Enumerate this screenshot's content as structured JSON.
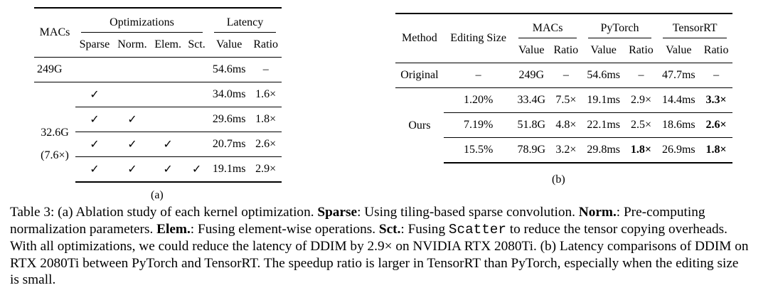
{
  "table_a": {
    "header": {
      "macs": "MACs",
      "optimizations": "Optimizations",
      "latency": "Latency",
      "sparse": "Sparse",
      "norm": "Norm.",
      "elem": "Elem.",
      "sct": "Sct.",
      "value": "Value",
      "ratio": "Ratio"
    },
    "rows": [
      {
        "macs": "249G",
        "value": "54.6ms",
        "ratio": "–"
      },
      {
        "sparse": "✓",
        "value": "34.0ms",
        "ratio": "1.6×"
      },
      {
        "sparse": "✓",
        "norm": "✓",
        "value": "29.6ms",
        "ratio": "1.8×"
      },
      {
        "sparse": "✓",
        "norm": "✓",
        "elem": "✓",
        "value": "20.7ms",
        "ratio": "2.6×"
      },
      {
        "sparse": "✓",
        "norm": "✓",
        "elem": "✓",
        "sct": "✓",
        "value": "19.1ms",
        "ratio": "2.9×"
      }
    ],
    "group_macs": "32.6G",
    "group_macs_ratio": "(7.6×)",
    "label": "(a)"
  },
  "table_b": {
    "header": {
      "method": "Method",
      "editing_size": "Editing Size",
      "macs": "MACs",
      "pytorch": "PyTorch",
      "tensorrt": "TensorRT",
      "macs_value": "Value",
      "macs_ratio": "Ratio",
      "pytorch_value": "Value",
      "pytorch_ratio": "Ratio",
      "tensorrt_value": "Value",
      "tensorrt_ratio": "Ratio"
    },
    "rows": [
      {
        "method": "Original",
        "editing_size": "–",
        "macs_value": "249G",
        "macs_ratio": "–",
        "pytorch_value": "54.6ms",
        "pytorch_ratio": "–",
        "tensorrt_value": "47.7ms",
        "tensorrt_ratio": "–"
      },
      {
        "editing_size": "1.20%",
        "macs_value": "33.4G",
        "macs_ratio": "7.5×",
        "pytorch_value": "19.1ms",
        "pytorch_ratio": "2.9×",
        "tensorrt_value": "14.4ms",
        "tensorrt_ratio": "3.3×",
        "bold": [
          "tensorrt_ratio"
        ]
      },
      {
        "editing_size": "7.19%",
        "macs_value": "51.8G",
        "macs_ratio": "4.8×",
        "pytorch_value": "22.1ms",
        "pytorch_ratio": "2.5×",
        "tensorrt_value": "18.6ms",
        "tensorrt_ratio": "2.6×",
        "bold": [
          "tensorrt_ratio"
        ]
      },
      {
        "editing_size": "15.5%",
        "macs_value": "78.9G",
        "macs_ratio": "3.2×",
        "pytorch_value": "29.8ms",
        "pytorch_ratio": "1.8×",
        "tensorrt_value": "26.9ms",
        "tensorrt_ratio": "1.8×",
        "bold": [
          "pytorch_ratio",
          "tensorrt_ratio"
        ]
      }
    ],
    "group_method": "Ours",
    "label": "(b)"
  },
  "caption": [
    {
      "text": "Table 3: (a) Ablation study of each kernel optimization. "
    },
    {
      "text": "Sparse",
      "style": "bold"
    },
    {
      "text": ": Using tiling-based sparse convolution. "
    },
    {
      "text": "Norm.",
      "style": "bold"
    },
    {
      "text": ": Pre-computing normalization parameters. "
    },
    {
      "text": "Elem.",
      "style": "bold"
    },
    {
      "text": ": Fusing element-wise operations. "
    },
    {
      "text": "Sct.",
      "style": "bold"
    },
    {
      "text": ": Fusing "
    },
    {
      "text": "Scatter",
      "style": "mono"
    },
    {
      "text": " to reduce the tensor copying overheads. With all optimizations, we could reduce the latency of DDIM by 2.9× on NVIDIA RTX 2080Ti. (b) Latency comparisons of DDIM on RTX 2080Ti between PyTorch and TensorRT. The speedup ratio is larger in TensorRT than PyTorch, especially when the editing size is small."
    }
  ]
}
